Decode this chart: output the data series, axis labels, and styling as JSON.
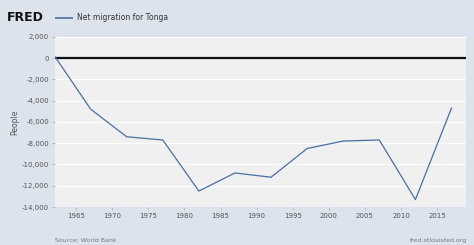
{
  "title": "Net migration for Tonga",
  "ylabel": "People",
  "source_left": "Source: World Bank",
  "source_right": "fred.stlouisfed.org",
  "xlim": [
    1962,
    2019
  ],
  "ylim": [
    -14000,
    2000
  ],
  "yticks": [
    2000,
    0,
    -2000,
    -4000,
    -6000,
    -8000,
    -10000,
    -12000,
    -14000
  ],
  "xticks": [
    1965,
    1970,
    1975,
    1980,
    1985,
    1990,
    1995,
    2000,
    2005,
    2010,
    2015
  ],
  "years": [
    1962,
    1967,
    1972,
    1977,
    1982,
    1987,
    1992,
    1997,
    2002,
    2007,
    2012,
    2017
  ],
  "values": [
    200,
    -4800,
    -7400,
    -7700,
    -12500,
    -10800,
    -11200,
    -8500,
    -7800,
    -7700,
    -13300,
    -4700
  ],
  "line_color": "#4a6fa5",
  "zero_line_color": "#111111",
  "bg_color": "#dce3ec",
  "plot_bg_color": "#f0f0f0",
  "header_bg_color": "#dce3ec",
  "grid_color": "#ffffff",
  "fred_bold": "FRED",
  "fred_fontsize": 9,
  "legend_line_color": "#4a6fa5",
  "title_fontsize": 5.5,
  "tick_fontsize": 5.0,
  "ylabel_fontsize": 5.5,
  "source_fontsize": 4.5
}
